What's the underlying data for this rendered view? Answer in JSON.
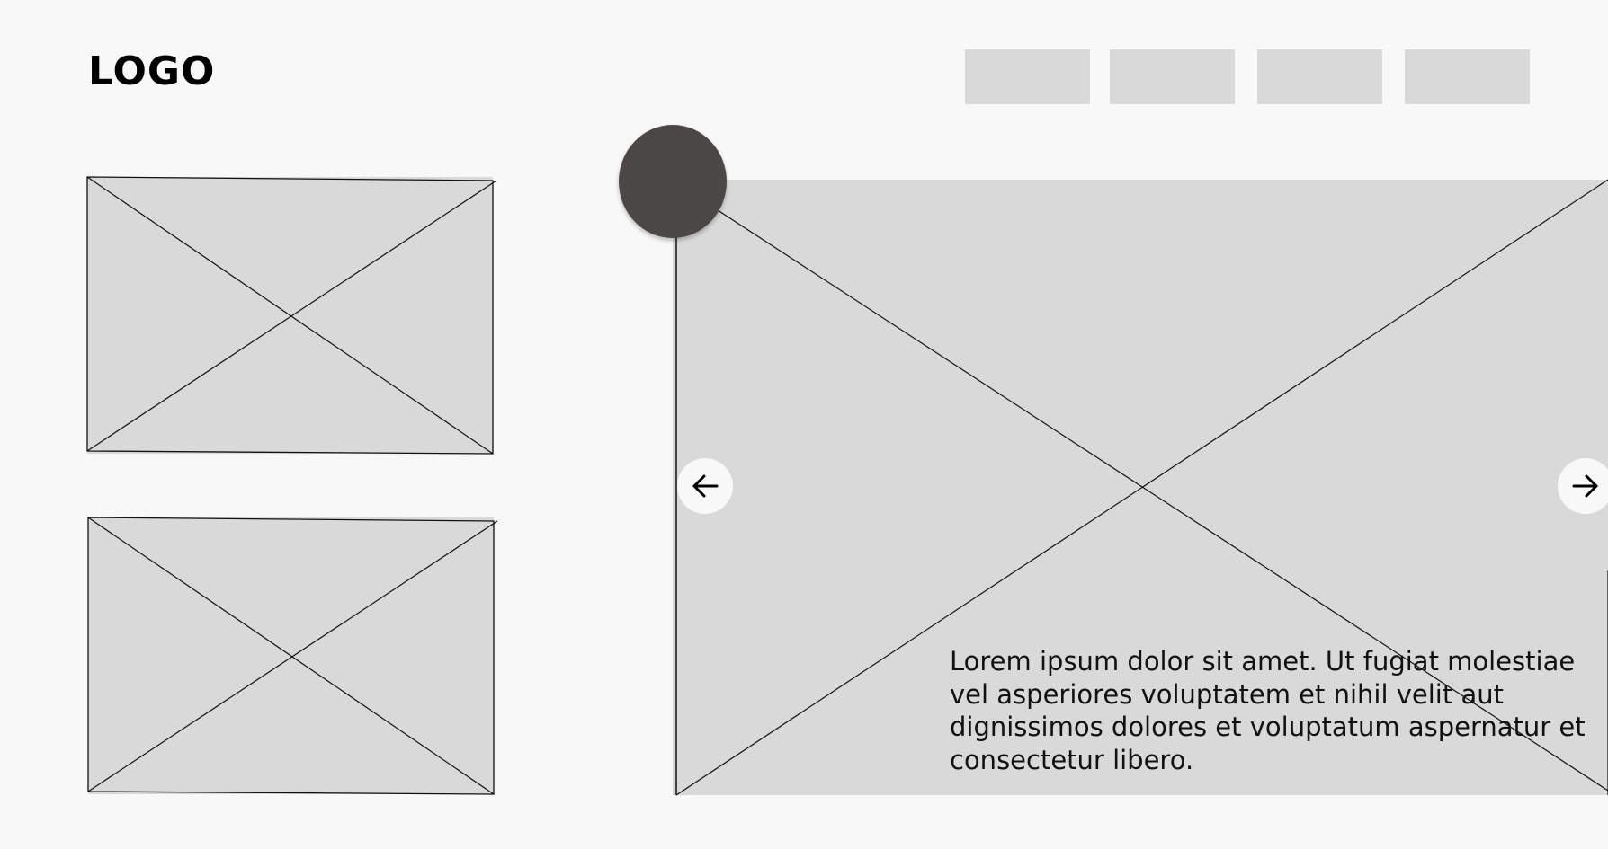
{
  "header": {
    "logo_text": "LOGO",
    "nav_items": [
      "",
      "",
      "",
      ""
    ]
  },
  "thumbnails": [
    {
      "name": "image-placeholder"
    },
    {
      "name": "image-placeholder"
    }
  ],
  "hero": {
    "caption": "Lorem ipsum dolor sit amet. Ut fugiat molestiae vel asperiores voluptatem et nihil velit aut dignissimos dolores et voluptatum aspernatur et consectetur libero.",
    "prev_icon": "arrow-left-icon",
    "next_icon": "arrow-right-icon"
  },
  "colors": {
    "background": "#f8f8f8",
    "placeholder": "#d9d9d9",
    "circle": "#4b4747"
  }
}
